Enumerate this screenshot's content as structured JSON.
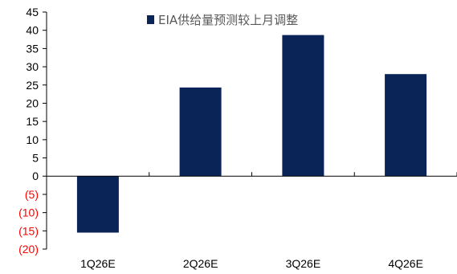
{
  "chart_data": {
    "type": "bar",
    "title": "",
    "xlabel": "",
    "ylabel": "",
    "categories": [
      "1Q26E",
      "2Q26E",
      "3Q26E",
      "4Q26E"
    ],
    "series": [
      {
        "name": "EIA供给量预测较上月调整",
        "values": [
          -15.5,
          24.3,
          38.7,
          28.0
        ]
      }
    ],
    "ylim": [
      -20,
      45
    ],
    "yticks": [
      45,
      40,
      35,
      30,
      25,
      20,
      15,
      10,
      5,
      0,
      -5,
      -10,
      -15,
      -20
    ],
    "ytick_labels": [
      "45",
      "40",
      "35",
      "30",
      "25",
      "20",
      "15",
      "10",
      "5",
      "0",
      "(5)",
      "(10)",
      "(15)",
      "(20)"
    ],
    "grid": false,
    "legend": {
      "position": "top-left"
    },
    "colors": {
      "bar": "#0a2458",
      "axis": "#000000",
      "tick_positive": "#000000",
      "tick_negative": "#ff0000",
      "legend_text": "#595959"
    }
  }
}
